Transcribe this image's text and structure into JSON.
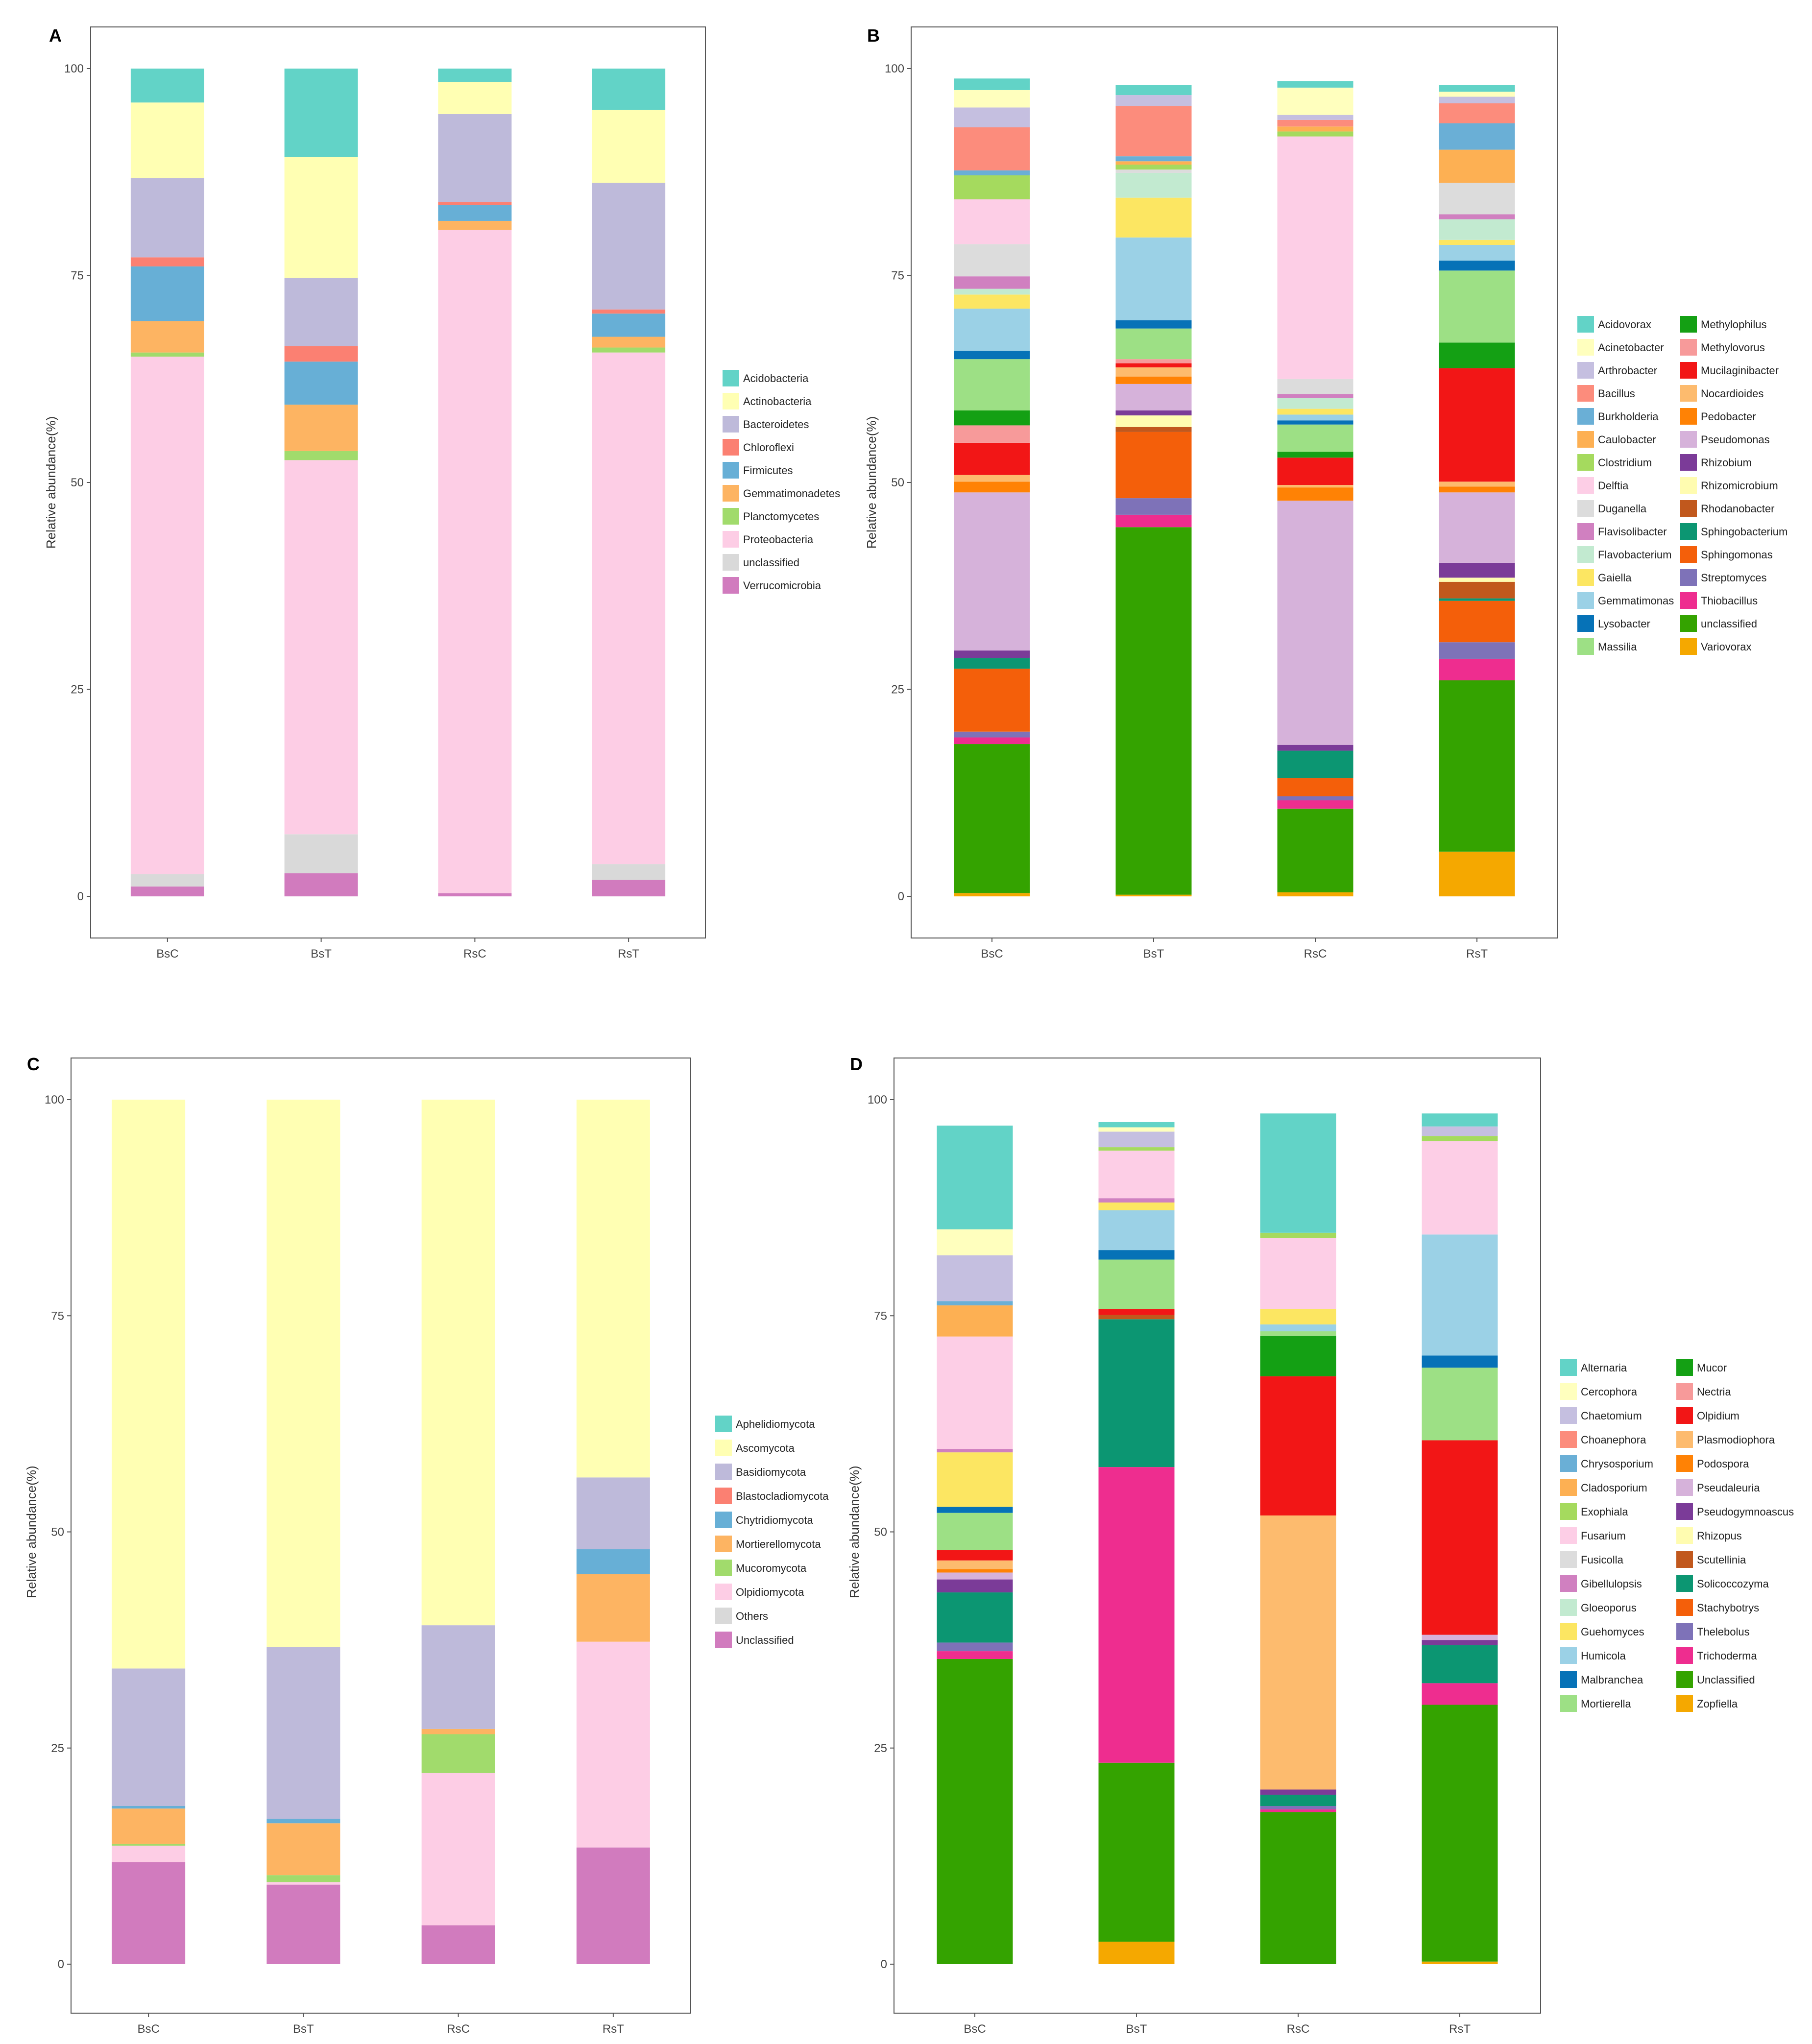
{
  "figure": {
    "panels": [
      {
        "letter": "A",
        "chart_ref": 0
      },
      {
        "letter": "B",
        "chart_ref": 1
      },
      {
        "letter": "C",
        "chart_ref": 2
      },
      {
        "letter": "D",
        "chart_ref": 3
      }
    ]
  },
  "chart_data": [
    {
      "type": "bar",
      "stacked": true,
      "panel": "A",
      "title": "",
      "xlabel": "",
      "ylabel": "Relative abundance(%)",
      "ylim": [
        0,
        100
      ],
      "yticks": [
        0,
        25,
        50,
        75,
        100
      ],
      "categories": [
        "BsC",
        "BsT",
        "RsC",
        "RsT"
      ],
      "legend_position": "right",
      "legend_columns": 1,
      "series": [
        {
          "name": "Verrucomicrobia",
          "color": "#D17BBE",
          "values": [
            1.2,
            2.8,
            0.4,
            2.0
          ]
        },
        {
          "name": "unclassified",
          "color": "#D9D9D9",
          "values": [
            1.5,
            4.7,
            0.0,
            1.9
          ]
        },
        {
          "name": "Proteobacteria",
          "color": "#FDCDE5",
          "values": [
            62.5,
            45.2,
            80.1,
            61.8
          ]
        },
        {
          "name": "Planctomycetes",
          "color": "#A1DB6C",
          "values": [
            0.5,
            1.1,
            0.0,
            0.6
          ]
        },
        {
          "name": "Gemmatimonadetes",
          "color": "#FDB462",
          "values": [
            3.8,
            5.6,
            1.1,
            1.3
          ]
        },
        {
          "name": "Firmicutes",
          "color": "#67AFD6",
          "values": [
            6.6,
            5.2,
            1.9,
            2.8
          ]
        },
        {
          "name": "Chloroflexi",
          "color": "#FB8072",
          "values": [
            1.1,
            1.9,
            0.4,
            0.5
          ]
        },
        {
          "name": "Bacteroidetes",
          "color": "#BEBADA",
          "values": [
            9.6,
            8.2,
            10.6,
            15.3
          ]
        },
        {
          "name": "Actinobacteria",
          "color": "#FFFFB3",
          "values": [
            9.1,
            14.6,
            3.9,
            8.8
          ]
        },
        {
          "name": "Acidobacteria",
          "color": "#62D3C7",
          "values": [
            4.1,
            10.7,
            1.6,
            5.0
          ]
        }
      ]
    },
    {
      "type": "bar",
      "stacked": true,
      "panel": "B",
      "title": "",
      "xlabel": "",
      "ylabel": "Relative abundance(%)",
      "ylim": [
        0,
        100
      ],
      "yticks": [
        0,
        25,
        50,
        75,
        100
      ],
      "categories": [
        "BsC",
        "BsT",
        "RsC",
        "RsT"
      ],
      "legend_position": "right",
      "legend_columns": 2,
      "series": [
        {
          "name": "Variovorax",
          "color": "#F5A800",
          "values": [
            0.4,
            0.2,
            0.5,
            5.4
          ]
        },
        {
          "name": "unclassified",
          "color": "#34A300",
          "values": [
            18.0,
            44.4,
            10.1,
            20.7
          ]
        },
        {
          "name": "Thiobacillus",
          "color": "#EE2D8F",
          "values": [
            0.8,
            1.5,
            1.0,
            2.6
          ]
        },
        {
          "name": "Streptomyces",
          "color": "#7E72B8",
          "values": [
            0.7,
            2.0,
            0.5,
            2.0
          ]
        },
        {
          "name": "Sphingomonas",
          "color": "#F45F0A",
          "values": [
            7.6,
            8.0,
            2.2,
            5.0
          ]
        },
        {
          "name": "Sphingobacterium",
          "color": "#0C9672",
          "values": [
            1.3,
            0.0,
            3.3,
            0.3
          ]
        },
        {
          "name": "Rhodanobacter",
          "color": "#C1581D",
          "values": [
            0.0,
            0.6,
            0.0,
            2.0
          ]
        },
        {
          "name": "Rhizomicrobium",
          "color": "#FFFCB0",
          "values": [
            0.0,
            1.4,
            0.0,
            0.5
          ]
        },
        {
          "name": "Rhizobium",
          "color": "#7B3B98",
          "values": [
            0.9,
            0.6,
            0.7,
            1.8
          ]
        },
        {
          "name": "Pseudomonas",
          "color": "#D6B2DA",
          "values": [
            19.1,
            3.2,
            29.5,
            8.5
          ]
        },
        {
          "name": "Pedobacter",
          "color": "#FF8205",
          "values": [
            1.3,
            0.9,
            1.6,
            0.7
          ]
        },
        {
          "name": "Nocardioides",
          "color": "#FDBB6E",
          "values": [
            0.8,
            1.1,
            0.3,
            0.6
          ]
        },
        {
          "name": "Mucilaginibacter",
          "color": "#F21616",
          "values": [
            3.9,
            0.5,
            3.3,
            13.7
          ]
        },
        {
          "name": "Methylovorus",
          "color": "#F79A9A",
          "values": [
            2.1,
            0.5,
            0.0,
            0.0
          ]
        },
        {
          "name": "Methylophilus",
          "color": "#14A014",
          "values": [
            1.8,
            0.0,
            0.7,
            3.1
          ]
        },
        {
          "name": "Massilia",
          "color": "#9DE085",
          "values": [
            6.2,
            3.7,
            3.3,
            8.7
          ]
        },
        {
          "name": "Lysobacter",
          "color": "#0672B7",
          "values": [
            1.0,
            1.0,
            0.5,
            1.2
          ]
        },
        {
          "name": "Gemmatimonas",
          "color": "#9BD1E6",
          "values": [
            5.1,
            10.0,
            0.7,
            1.9
          ]
        },
        {
          "name": "Gaiella",
          "color": "#FCE662",
          "values": [
            1.7,
            4.8,
            0.7,
            0.6
          ]
        },
        {
          "name": "Flavobacterium",
          "color": "#C2EAD0",
          "values": [
            0.7,
            3.0,
            1.3,
            2.5
          ]
        },
        {
          "name": "Flavisolibacter",
          "color": "#D080C0",
          "values": [
            1.5,
            0.0,
            0.5,
            0.6
          ]
        },
        {
          "name": "Duganella",
          "color": "#DCDCDC",
          "values": [
            3.9,
            0.4,
            1.8,
            3.8
          ]
        },
        {
          "name": "Delftia",
          "color": "#FDCEE6",
          "values": [
            5.4,
            0.0,
            29.3,
            0.0
          ]
        },
        {
          "name": "Clostridium",
          "color": "#A5DA5E",
          "values": [
            2.9,
            0.6,
            0.6,
            0.0
          ]
        },
        {
          "name": "Caulobacter",
          "color": "#FDB053",
          "values": [
            0.0,
            0.4,
            0.6,
            4.0
          ]
        },
        {
          "name": "Burkholderia",
          "color": "#6AAFD6",
          "values": [
            0.6,
            0.6,
            0.0,
            3.2
          ]
        },
        {
          "name": "Bacillus",
          "color": "#FC8C7C",
          "values": [
            5.2,
            6.1,
            0.8,
            2.4
          ]
        },
        {
          "name": "Arthrobacter",
          "color": "#C5BFE0",
          "values": [
            2.4,
            1.3,
            0.6,
            0.8
          ]
        },
        {
          "name": "Acinetobacter",
          "color": "#FFFFBE",
          "values": [
            2.1,
            0.0,
            3.3,
            0.6
          ]
        },
        {
          "name": "Acidovorax",
          "color": "#62D3C7",
          "values": [
            1.4,
            1.2,
            0.8,
            0.8
          ]
        }
      ]
    },
    {
      "type": "bar",
      "stacked": true,
      "panel": "C",
      "title": "",
      "xlabel": "",
      "ylabel": "Relative abundance(%)",
      "ylim": [
        0,
        100
      ],
      "yticks": [
        0,
        25,
        50,
        75,
        100
      ],
      "categories": [
        "BsC",
        "BsT",
        "RsC",
        "RsT"
      ],
      "legend_position": "right",
      "legend_columns": 1,
      "series": [
        {
          "name": "Unclassified",
          "color": "#D17BBE",
          "values": [
            11.8,
            9.2,
            4.5,
            13.5
          ]
        },
        {
          "name": "Others",
          "color": "#D9D9D9",
          "values": [
            0.0,
            0.0,
            0.0,
            0.0
          ]
        },
        {
          "name": "Olpidiomycota",
          "color": "#FDCDE5",
          "values": [
            1.9,
            0.3,
            17.6,
            23.8
          ]
        },
        {
          "name": "Mucoromycota",
          "color": "#A1DB6C",
          "values": [
            0.2,
            0.8,
            4.5,
            0.0
          ]
        },
        {
          "name": "Mortierellomycota",
          "color": "#FDB462",
          "values": [
            4.1,
            6.0,
            0.6,
            7.8
          ]
        },
        {
          "name": "Chytridiomycota",
          "color": "#67AFD6",
          "values": [
            0.3,
            0.5,
            0.0,
            2.9
          ]
        },
        {
          "name": "Blastocladiomycota",
          "color": "#FB8072",
          "values": [
            0.0,
            0.0,
            0.0,
            0.0
          ]
        },
        {
          "name": "Basidiomycota",
          "color": "#BEBADA",
          "values": [
            15.9,
            19.9,
            12.0,
            8.3
          ]
        },
        {
          "name": "Ascomycota",
          "color": "#FFFFB3",
          "values": [
            65.8,
            63.3,
            60.8,
            43.7
          ]
        },
        {
          "name": "Aphelidiomycota",
          "color": "#62D3C7",
          "values": [
            0.0,
            0.0,
            0.0,
            0.0
          ]
        }
      ]
    },
    {
      "type": "bar",
      "stacked": true,
      "panel": "D",
      "title": "",
      "xlabel": "",
      "ylabel": "Relative abundance(%)",
      "ylim": [
        0,
        100
      ],
      "yticks": [
        0,
        25,
        50,
        75,
        100
      ],
      "categories": [
        "BsC",
        "BsT",
        "RsC",
        "RsT"
      ],
      "legend_position": "right",
      "legend_columns": 2,
      "series": [
        {
          "name": "Zopfiella",
          "color": "#F5A800",
          "values": [
            0.0,
            2.6,
            0.0,
            0.3
          ]
        },
        {
          "name": "Unclassified",
          "color": "#34A300",
          "values": [
            35.3,
            20.7,
            17.6,
            29.7
          ]
        },
        {
          "name": "Trichoderma",
          "color": "#EE2D8F",
          "values": [
            0.9,
            34.2,
            0.3,
            2.5
          ]
        },
        {
          "name": "Thelebolus",
          "color": "#7E72B8",
          "values": [
            1.0,
            0.0,
            0.4,
            0.0
          ]
        },
        {
          "name": "Stachybotrys",
          "color": "#F45F0A",
          "values": [
            0.0,
            0.0,
            0.0,
            0.0
          ]
        },
        {
          "name": "Solicoccozyma",
          "color": "#0C9672",
          "values": [
            5.8,
            17.1,
            1.3,
            4.4
          ]
        },
        {
          "name": "Scutellinia",
          "color": "#C1581D",
          "values": [
            0.0,
            0.5,
            0.0,
            0.0
          ]
        },
        {
          "name": "Rhizopus",
          "color": "#FFFCB0",
          "values": [
            0.0,
            0.0,
            0.0,
            0.0
          ]
        },
        {
          "name": "Pseudogymnoascus",
          "color": "#7B3B98",
          "values": [
            1.5,
            0.0,
            0.6,
            0.6
          ]
        },
        {
          "name": "Pseudaleuria",
          "color": "#D6B2DA",
          "values": [
            0.8,
            0.0,
            0.0,
            0.6
          ]
        },
        {
          "name": "Podospora",
          "color": "#FF8205",
          "values": [
            0.4,
            0.0,
            0.0,
            0.0
          ]
        },
        {
          "name": "Plasmodiophora",
          "color": "#FDBB6E",
          "values": [
            1.0,
            0.0,
            31.7,
            0.0
          ]
        },
        {
          "name": "Olpidium",
          "color": "#F21616",
          "values": [
            1.2,
            0.7,
            16.1,
            22.5
          ]
        },
        {
          "name": "Nectria",
          "color": "#F79A9A",
          "values": [
            0.0,
            0.0,
            0.0,
            0.0
          ]
        },
        {
          "name": "Mucor",
          "color": "#14A014",
          "values": [
            0.0,
            0.0,
            4.7,
            0.0
          ]
        },
        {
          "name": "Mortierella",
          "color": "#9DE085",
          "values": [
            4.3,
            5.7,
            0.5,
            8.4
          ]
        },
        {
          "name": "Malbranchea",
          "color": "#0672B7",
          "values": [
            0.7,
            1.1,
            0.0,
            1.4
          ]
        },
        {
          "name": "Humicola",
          "color": "#9BD1E6",
          "values": [
            0.0,
            4.6,
            0.8,
            14.0
          ]
        },
        {
          "name": "Guehomyces",
          "color": "#FCE662",
          "values": [
            6.3,
            0.9,
            1.8,
            0.0
          ]
        },
        {
          "name": "Gloeoporus",
          "color": "#C2EAD0",
          "values": [
            0.0,
            0.0,
            0.0,
            0.0
          ]
        },
        {
          "name": "Gibellulopsis",
          "color": "#D080C0",
          "values": [
            0.4,
            0.5,
            0.0,
            0.0
          ]
        },
        {
          "name": "Fusicolla",
          "color": "#DCDCDC",
          "values": [
            0.0,
            0.0,
            0.0,
            0.0
          ]
        },
        {
          "name": "Fusarium",
          "color": "#FDCEE6",
          "values": [
            13.0,
            5.5,
            8.2,
            10.8
          ]
        },
        {
          "name": "Exophiala",
          "color": "#A5DA5E",
          "values": [
            0.0,
            0.4,
            0.6,
            0.6
          ]
        },
        {
          "name": "Cladosporium",
          "color": "#FDB053",
          "values": [
            3.6,
            0.0,
            0.0,
            0.0
          ]
        },
        {
          "name": "Chrysosporium",
          "color": "#6AAFD6",
          "values": [
            0.5,
            0.0,
            0.0,
            0.0
          ]
        },
        {
          "name": "Choanephora",
          "color": "#FC8C7C",
          "values": [
            0.0,
            0.0,
            0.0,
            0.0
          ]
        },
        {
          "name": "Chaetomium",
          "color": "#C5BFE0",
          "values": [
            5.3,
            1.8,
            0.0,
            1.1
          ]
        },
        {
          "name": "Cercophora",
          "color": "#FFFFBE",
          "values": [
            3.0,
            0.5,
            0.0,
            0.0
          ]
        },
        {
          "name": "Alternaria",
          "color": "#62D3C7",
          "values": [
            12.0,
            0.6,
            13.8,
            1.5
          ]
        }
      ]
    }
  ]
}
